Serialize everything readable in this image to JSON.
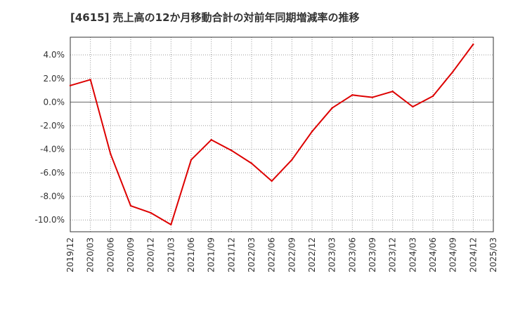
{
  "chart_data": {
    "type": "line",
    "title": "[4615]  売上高の12か月移動合計の対前年同期増減率の推移",
    "xlabel": "",
    "ylabel": "",
    "ylim": [
      -11.0,
      5.5
    ],
    "yticks": [
      4.0,
      2.0,
      0.0,
      -2.0,
      -4.0,
      -6.0,
      -8.0,
      -10.0
    ],
    "ytick_labels": [
      "4.0%",
      "2.0%",
      "0.0%",
      "-2.0%",
      "-4.0%",
      "-6.0%",
      "-8.0%",
      "-10.0%"
    ],
    "x_ticks": [
      "2019/12",
      "2020/03",
      "2020/06",
      "2020/09",
      "2020/12",
      "2021/03",
      "2021/06",
      "2021/09",
      "2021/12",
      "2022/03",
      "2022/06",
      "2022/09",
      "2022/12",
      "2023/03",
      "2023/06",
      "2023/09",
      "2023/12",
      "2024/03",
      "2024/06",
      "2024/09",
      "2024/12",
      "2025/03"
    ],
    "grid": true,
    "series": [
      {
        "name": "対前年同期増減率",
        "color": "#dd0000",
        "x": [
          "2019/12",
          "2020/03",
          "2020/06",
          "2020/09",
          "2020/12",
          "2021/03",
          "2021/06",
          "2021/09",
          "2021/12",
          "2022/03",
          "2022/06",
          "2022/09",
          "2022/12",
          "2023/03",
          "2023/06",
          "2023/09",
          "2023/12",
          "2024/03",
          "2024/06",
          "2024/09",
          "2024/12"
        ],
        "values": [
          1.4,
          1.9,
          -4.4,
          -8.8,
          -9.4,
          -10.4,
          -4.9,
          -3.2,
          -4.1,
          -5.2,
          -6.7,
          -4.9,
          -2.5,
          -0.5,
          0.6,
          0.4,
          0.9,
          -0.4,
          0.5,
          2.6,
          4.9
        ]
      }
    ]
  }
}
